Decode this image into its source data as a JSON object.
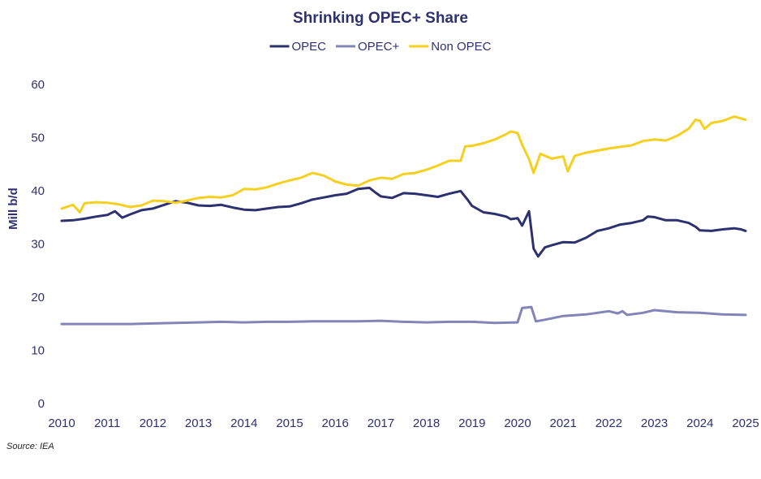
{
  "chart_data": {
    "type": "line",
    "title": "Shrinking OPEC+ Share",
    "ylabel": "Mill b/d",
    "xlabel": "",
    "xlim": [
      2010,
      2025
    ],
    "ylim": [
      0,
      60
    ],
    "x_ticks": [
      "2010",
      "2011",
      "2012",
      "2013",
      "2014",
      "2015",
      "2016",
      "2017",
      "2018",
      "2019",
      "2020",
      "2021",
      "2022",
      "2023",
      "2024",
      "2025"
    ],
    "y_ticks": [
      "0",
      "10",
      "20",
      "30",
      "40",
      "50",
      "60"
    ],
    "grid": false,
    "legend_position": "top-center",
    "source": "Source: IEA",
    "series": [
      {
        "name": "OPEC",
        "color": "#2e3170",
        "points": [
          [
            2010.0,
            34.2
          ],
          [
            2010.25,
            34.3
          ],
          [
            2010.5,
            34.6
          ],
          [
            2010.75,
            35.0
          ],
          [
            2011.0,
            35.3
          ],
          [
            2011.17,
            36.0
          ],
          [
            2011.33,
            34.8
          ],
          [
            2011.5,
            35.4
          ],
          [
            2011.75,
            36.2
          ],
          [
            2012.0,
            36.5
          ],
          [
            2012.25,
            37.2
          ],
          [
            2012.5,
            37.9
          ],
          [
            2012.75,
            37.6
          ],
          [
            2013.0,
            37.1
          ],
          [
            2013.25,
            37.0
          ],
          [
            2013.5,
            37.2
          ],
          [
            2013.75,
            36.7
          ],
          [
            2014.0,
            36.3
          ],
          [
            2014.25,
            36.2
          ],
          [
            2014.5,
            36.5
          ],
          [
            2014.75,
            36.8
          ],
          [
            2015.0,
            36.9
          ],
          [
            2015.25,
            37.5
          ],
          [
            2015.5,
            38.2
          ],
          [
            2015.75,
            38.6
          ],
          [
            2016.0,
            39.0
          ],
          [
            2016.25,
            39.3
          ],
          [
            2016.5,
            40.2
          ],
          [
            2016.75,
            40.4
          ],
          [
            2016.9,
            39.4
          ],
          [
            2017.0,
            38.8
          ],
          [
            2017.25,
            38.5
          ],
          [
            2017.5,
            39.4
          ],
          [
            2017.75,
            39.3
          ],
          [
            2018.0,
            39.0
          ],
          [
            2018.25,
            38.7
          ],
          [
            2018.5,
            39.3
          ],
          [
            2018.75,
            39.8
          ],
          [
            2018.9,
            38.2
          ],
          [
            2019.0,
            37.0
          ],
          [
            2019.25,
            35.8
          ],
          [
            2019.5,
            35.5
          ],
          [
            2019.75,
            35.0
          ],
          [
            2019.85,
            34.5
          ],
          [
            2020.0,
            34.7
          ],
          [
            2020.1,
            33.3
          ],
          [
            2020.25,
            36.0
          ],
          [
            2020.35,
            29.0
          ],
          [
            2020.45,
            27.5
          ],
          [
            2020.6,
            29.2
          ],
          [
            2020.75,
            29.6
          ],
          [
            2021.0,
            30.2
          ],
          [
            2021.25,
            30.1
          ],
          [
            2021.5,
            31.0
          ],
          [
            2021.75,
            32.3
          ],
          [
            2022.0,
            32.8
          ],
          [
            2022.25,
            33.5
          ],
          [
            2022.5,
            33.8
          ],
          [
            2022.75,
            34.3
          ],
          [
            2022.85,
            35.0
          ],
          [
            2023.0,
            34.9
          ],
          [
            2023.25,
            34.3
          ],
          [
            2023.5,
            34.3
          ],
          [
            2023.75,
            33.8
          ],
          [
            2023.9,
            33.1
          ],
          [
            2024.0,
            32.4
          ],
          [
            2024.25,
            32.3
          ],
          [
            2024.5,
            32.6
          ],
          [
            2024.75,
            32.8
          ],
          [
            2024.9,
            32.6
          ],
          [
            2025.0,
            32.3
          ]
        ]
      },
      {
        "name": "OPEC+",
        "color": "#8384b8",
        "points": [
          [
            2010.0,
            14.8
          ],
          [
            2010.5,
            14.8
          ],
          [
            2011.0,
            14.8
          ],
          [
            2011.5,
            14.8
          ],
          [
            2012.0,
            14.9
          ],
          [
            2012.5,
            15.0
          ],
          [
            2013.0,
            15.1
          ],
          [
            2013.5,
            15.2
          ],
          [
            2014.0,
            15.1
          ],
          [
            2014.5,
            15.2
          ],
          [
            2015.0,
            15.2
          ],
          [
            2015.5,
            15.3
          ],
          [
            2016.0,
            15.3
          ],
          [
            2016.5,
            15.3
          ],
          [
            2017.0,
            15.4
          ],
          [
            2017.5,
            15.2
          ],
          [
            2018.0,
            15.1
          ],
          [
            2018.5,
            15.2
          ],
          [
            2019.0,
            15.2
          ],
          [
            2019.5,
            15.0
          ],
          [
            2020.0,
            15.1
          ],
          [
            2020.1,
            17.8
          ],
          [
            2020.3,
            18.0
          ],
          [
            2020.4,
            15.3
          ],
          [
            2020.6,
            15.6
          ],
          [
            2021.0,
            16.3
          ],
          [
            2021.5,
            16.6
          ],
          [
            2021.75,
            16.9
          ],
          [
            2022.0,
            17.2
          ],
          [
            2022.2,
            16.8
          ],
          [
            2022.3,
            17.2
          ],
          [
            2022.4,
            16.5
          ],
          [
            2022.75,
            16.9
          ],
          [
            2023.0,
            17.4
          ],
          [
            2023.5,
            17.0
          ],
          [
            2024.0,
            16.9
          ],
          [
            2024.5,
            16.6
          ],
          [
            2025.0,
            16.5
          ]
        ]
      },
      {
        "name": "Non OPEC",
        "color": "#f5d020",
        "points": [
          [
            2010.0,
            36.5
          ],
          [
            2010.25,
            37.2
          ],
          [
            2010.4,
            35.8
          ],
          [
            2010.5,
            37.5
          ],
          [
            2010.75,
            37.7
          ],
          [
            2011.0,
            37.6
          ],
          [
            2011.25,
            37.3
          ],
          [
            2011.5,
            36.8
          ],
          [
            2011.75,
            37.1
          ],
          [
            2012.0,
            38.0
          ],
          [
            2012.25,
            37.9
          ],
          [
            2012.5,
            37.6
          ],
          [
            2012.75,
            38.0
          ],
          [
            2013.0,
            38.5
          ],
          [
            2013.25,
            38.7
          ],
          [
            2013.5,
            38.6
          ],
          [
            2013.75,
            39.0
          ],
          [
            2014.0,
            40.2
          ],
          [
            2014.25,
            40.1
          ],
          [
            2014.5,
            40.5
          ],
          [
            2014.75,
            41.2
          ],
          [
            2015.0,
            41.8
          ],
          [
            2015.25,
            42.3
          ],
          [
            2015.5,
            43.2
          ],
          [
            2015.75,
            42.7
          ],
          [
            2016.0,
            41.6
          ],
          [
            2016.25,
            41.0
          ],
          [
            2016.5,
            40.8
          ],
          [
            2016.75,
            41.8
          ],
          [
            2017.0,
            42.3
          ],
          [
            2017.25,
            42.1
          ],
          [
            2017.5,
            43.0
          ],
          [
            2017.75,
            43.2
          ],
          [
            2018.0,
            43.8
          ],
          [
            2018.25,
            44.6
          ],
          [
            2018.5,
            45.5
          ],
          [
            2018.75,
            45.5
          ],
          [
            2018.85,
            48.2
          ],
          [
            2019.0,
            48.3
          ],
          [
            2019.25,
            48.8
          ],
          [
            2019.5,
            49.5
          ],
          [
            2019.75,
            50.5
          ],
          [
            2019.85,
            51.0
          ],
          [
            2020.0,
            50.7
          ],
          [
            2020.1,
            48.5
          ],
          [
            2020.25,
            45.8
          ],
          [
            2020.35,
            43.2
          ],
          [
            2020.5,
            46.8
          ],
          [
            2020.75,
            45.9
          ],
          [
            2021.0,
            46.3
          ],
          [
            2021.1,
            43.5
          ],
          [
            2021.25,
            46.4
          ],
          [
            2021.5,
            47.0
          ],
          [
            2021.75,
            47.4
          ],
          [
            2022.0,
            47.8
          ],
          [
            2022.25,
            48.1
          ],
          [
            2022.5,
            48.4
          ],
          [
            2022.75,
            49.2
          ],
          [
            2023.0,
            49.5
          ],
          [
            2023.25,
            49.3
          ],
          [
            2023.5,
            50.2
          ],
          [
            2023.75,
            51.5
          ],
          [
            2023.9,
            53.2
          ],
          [
            2024.0,
            53.0
          ],
          [
            2024.1,
            51.5
          ],
          [
            2024.25,
            52.6
          ],
          [
            2024.5,
            53.0
          ],
          [
            2024.75,
            53.8
          ],
          [
            2025.0,
            53.2
          ]
        ]
      }
    ]
  }
}
